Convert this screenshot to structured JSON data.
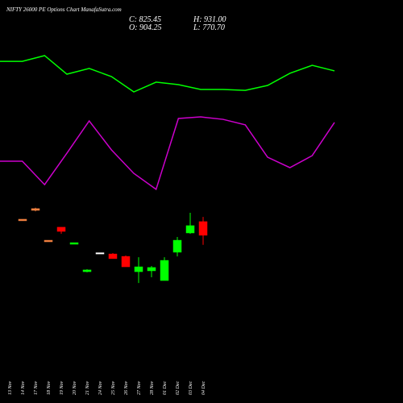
{
  "chart_data": {
    "type": "candlestick",
    "title": "NIFTY 26000 PE Options Chart ManafaSutra.com",
    "header_values": [
      "C: 825.45",
      "O: 904.25",
      "H: 931.00",
      "L: 770.70"
    ],
    "categories": [
      "13 Nov",
      "14 Nov",
      "17 Nov",
      "18 Nov",
      "19 Nov",
      "20 Nov",
      "21 Nov",
      "24 Nov",
      "25 Nov",
      "26 Nov",
      "27 Nov",
      "28 Nov",
      "01 Dec",
      "02 Dec",
      "03 Dec",
      "04 Dec"
    ],
    "open": [
      null,
      918,
      979,
      797,
      872,
      774,
      616,
      725,
      718,
      704,
      616,
      621,
      565,
      728,
      839,
      904.25
    ],
    "high": [
      null,
      918,
      984,
      797,
      872,
      783,
      630,
      725,
      723,
      709,
      699,
      649,
      699,
      816,
      955,
      931
    ],
    "low": [
      null,
      909,
      964,
      788,
      834,
      774,
      612,
      721,
      691,
      644,
      551,
      584,
      565,
      704,
      834,
      770.7
    ],
    "close": [
      null,
      909,
      969,
      788,
      848,
      783,
      626,
      721,
      691,
      644,
      644,
      640,
      681,
      797,
      881,
      825.45
    ],
    "candle_colors": [
      null,
      "#f08040",
      "#f08040",
      "#f08040",
      "#ff0000",
      "#00ff00",
      "#00ff00",
      "#ffffff",
      "#ff0000",
      "#ff0000",
      "#00ff00",
      "#00ff00",
      "#00ff00",
      "#00ff00",
      "#00ff00",
      "#ff0000"
    ],
    "series": [
      {
        "color": "#00ff00",
        "values": [
          1827,
          1827,
          1860,
          1753,
          1786,
          1739,
          1651,
          1707,
          1693,
          1665,
          1665,
          1660,
          1688,
          1758,
          1804,
          1772
        ]
      },
      {
        "color": "#cc00cc",
        "values": [
          1252,
          1252,
          1117,
          1298,
          1484,
          1317,
          1182,
          1090,
          1498,
          1507,
          1493,
          1461,
          1275,
          1215,
          1284,
          1475
        ]
      }
    ],
    "ylim": [
      -140,
      2180
    ]
  }
}
